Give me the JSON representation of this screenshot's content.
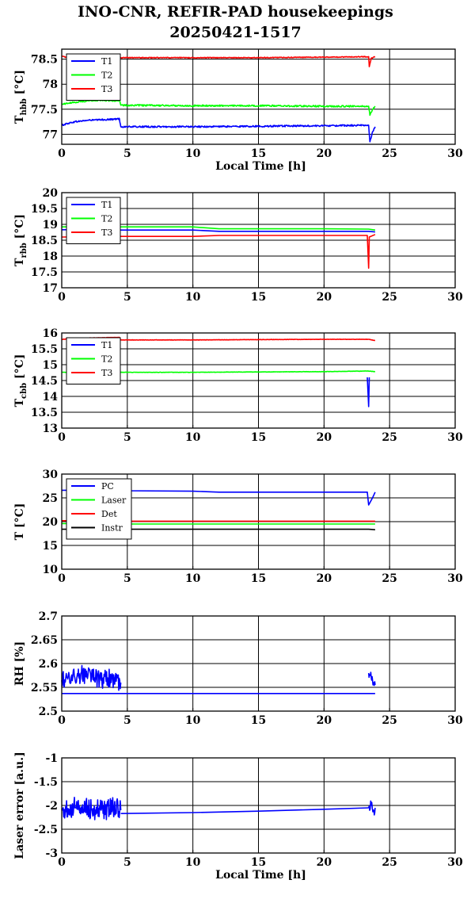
{
  "figure": {
    "title_line1": "INO-CNR, REFIR-PAD housekeepings",
    "title_line2": "20250421-1517"
  },
  "chart_data": [
    {
      "type": "line",
      "ylabel": "T",
      "ylabel_sub": "hbb",
      "ylabel_unit": " [°C]",
      "xlabel": "Local Time [h]",
      "xlim": [
        0,
        30
      ],
      "ylim": [
        76.8,
        78.7
      ],
      "xticks": [
        0,
        5,
        10,
        15,
        20,
        25,
        30
      ],
      "yticks": [
        77,
        77.5,
        78,
        78.5
      ],
      "ytick_labels": [
        "77",
        "77.5",
        "78",
        "78.5"
      ],
      "gridlines": [
        77,
        77.5,
        78,
        78.5
      ],
      "grid": true,
      "legend": "top-left",
      "series": [
        {
          "name": "T1",
          "color": "#0000ff",
          "noise": 0.03,
          "x": [
            0,
            0.5,
            1,
            2,
            3,
            4,
            4.4,
            4.5,
            10,
            15,
            20,
            23.4,
            23.5,
            23.7,
            23.9
          ],
          "y": [
            77.18,
            77.22,
            77.25,
            77.28,
            77.29,
            77.3,
            77.31,
            77.15,
            77.15,
            77.16,
            77.17,
            77.18,
            76.85,
            77.05,
            77.15
          ]
        },
        {
          "name": "T2",
          "color": "#00ff00",
          "noise": 0.03,
          "x": [
            0,
            0.5,
            1,
            2,
            3,
            4,
            4.4,
            4.5,
            10,
            15,
            20,
            23.4,
            23.5,
            23.7,
            23.9
          ],
          "y": [
            77.6,
            77.62,
            77.64,
            77.67,
            77.68,
            77.67,
            77.68,
            77.58,
            77.57,
            77.57,
            77.56,
            77.56,
            77.38,
            77.5,
            77.56
          ]
        },
        {
          "name": "T3",
          "color": "#ff0000",
          "noise": 0.015,
          "x": [
            0,
            0.3,
            1,
            2,
            3,
            4,
            4.4,
            4.5,
            10,
            15,
            20,
            23.4,
            23.45,
            23.6,
            23.9
          ],
          "y": [
            78.56,
            78.54,
            78.53,
            78.54,
            78.53,
            78.53,
            78.54,
            78.53,
            78.53,
            78.53,
            78.54,
            78.55,
            78.35,
            78.52,
            78.55
          ]
        }
      ]
    },
    {
      "type": "line",
      "ylabel": "T",
      "ylabel_sub": "rbb",
      "ylabel_unit": " [°C]",
      "xlabel": "",
      "xlim": [
        0,
        30
      ],
      "ylim": [
        17,
        20
      ],
      "xticks": [
        0,
        5,
        10,
        15,
        20,
        25,
        30
      ],
      "yticks": [
        17,
        17.5,
        18,
        18.5,
        19,
        19.5,
        20
      ],
      "ytick_labels": [
        "17",
        "17.5",
        "18",
        "18.5",
        "19",
        "19.5",
        "20"
      ],
      "gridlines": [
        17.5,
        18,
        18.5,
        19,
        19.5
      ],
      "grid": true,
      "legend": "top-left",
      "series": [
        {
          "name": "T1",
          "color": "#0000ff",
          "noise": 0,
          "x": [
            0,
            4.4,
            4.5,
            10,
            12,
            20,
            23.4,
            23.9
          ],
          "y": [
            18.83,
            18.85,
            18.82,
            18.82,
            18.78,
            18.78,
            18.78,
            18.76
          ]
        },
        {
          "name": "T2",
          "color": "#00ff00",
          "noise": 0,
          "x": [
            0,
            4.4,
            4.5,
            10,
            12,
            20,
            23.4,
            23.9
          ],
          "y": [
            18.92,
            18.94,
            18.92,
            18.92,
            18.86,
            18.86,
            18.85,
            18.82
          ]
        },
        {
          "name": "T3",
          "color": "#ff0000",
          "noise": 0,
          "x": [
            0,
            4.4,
            4.5,
            10,
            12,
            20,
            23.3,
            23.4,
            23.45,
            23.9
          ],
          "y": [
            18.6,
            18.62,
            18.62,
            18.62,
            18.65,
            18.65,
            18.65,
            17.62,
            18.6,
            18.68
          ]
        }
      ]
    },
    {
      "type": "line",
      "ylabel": "T",
      "ylabel_sub": "cbb",
      "ylabel_unit": " [°C]",
      "xlabel": "",
      "xlim": [
        0,
        30
      ],
      "ylim": [
        13,
        16
      ],
      "xticks": [
        0,
        5,
        10,
        15,
        20,
        25,
        30
      ],
      "yticks": [
        13,
        13.5,
        14,
        14.5,
        15,
        15.5,
        16
      ],
      "ytick_labels": [
        "13",
        "13.5",
        "14",
        "14.5",
        "15",
        "15.5",
        "16"
      ],
      "gridlines": [
        13.5,
        14,
        14.5,
        15,
        15.5
      ],
      "grid": true,
      "legend": "top-left",
      "series": [
        {
          "name": "T1",
          "color": "#0000ff",
          "noise": 0,
          "x": [
            23.3,
            23.4,
            23.45
          ],
          "y": [
            14.6,
            13.68,
            14.6
          ]
        },
        {
          "name": "T2",
          "color": "#00ff00",
          "noise": 0.01,
          "x": [
            0,
            4.4,
            4.5,
            10,
            15,
            20,
            23.4,
            23.9
          ],
          "y": [
            14.76,
            14.78,
            14.76,
            14.76,
            14.77,
            14.78,
            14.8,
            14.78
          ]
        },
        {
          "name": "T3",
          "color": "#ff0000",
          "noise": 0.01,
          "x": [
            0,
            1,
            2,
            3,
            4.4,
            4.5,
            10,
            15,
            20,
            23.4,
            23.9
          ],
          "y": [
            15.8,
            15.82,
            15.84,
            15.85,
            15.86,
            15.78,
            15.78,
            15.79,
            15.8,
            15.8,
            15.76
          ]
        }
      ]
    },
    {
      "type": "line",
      "ylabel": "T [°C]",
      "ylabel_sub": "",
      "ylabel_unit": "",
      "xlabel": "",
      "xlim": [
        0,
        30
      ],
      "ylim": [
        10,
        30
      ],
      "xticks": [
        0,
        5,
        10,
        15,
        20,
        25,
        30
      ],
      "yticks": [
        10,
        15,
        20,
        25,
        30
      ],
      "ytick_labels": [
        "10",
        "15",
        "20",
        "25",
        "30"
      ],
      "gridlines": [
        15,
        20,
        25
      ],
      "grid": true,
      "legend": "top-left",
      "series": [
        {
          "name": "PC",
          "color": "#0000ff",
          "noise": 0,
          "x": [
            0,
            4.4,
            4.5,
            10,
            12,
            20,
            23.3,
            23.4,
            23.7,
            23.9
          ],
          "y": [
            26.6,
            26.6,
            26.5,
            26.4,
            26.2,
            26.2,
            26.2,
            23.5,
            25.0,
            26.2
          ]
        },
        {
          "name": "Laser",
          "color": "#00ff00",
          "noise": 0,
          "x": [
            0,
            4.4,
            4.5,
            10,
            20,
            23.4,
            23.9
          ],
          "y": [
            19.6,
            19.6,
            19.5,
            19.5,
            19.5,
            19.5,
            19.5
          ]
        },
        {
          "name": "Det",
          "color": "#ff0000",
          "noise": 0,
          "x": [
            0,
            4.4,
            4.5,
            10,
            20,
            23.4,
            23.9
          ],
          "y": [
            20.2,
            20.2,
            20.1,
            20.1,
            20.1,
            20.1,
            20.1
          ]
        },
        {
          "name": "Instr",
          "color": "#000000",
          "noise": 0,
          "x": [
            0,
            4.4,
            4.5,
            10,
            20,
            23.4,
            23.9
          ],
          "y": [
            18.4,
            18.4,
            18.4,
            18.4,
            18.4,
            18.4,
            18.3
          ]
        }
      ]
    },
    {
      "type": "line",
      "ylabel": "RH [%]",
      "ylabel_sub": "",
      "ylabel_unit": "",
      "xlabel": "",
      "xlim": [
        0,
        30
      ],
      "ylim": [
        2.5,
        2.7
      ],
      "xticks": [
        0,
        5,
        10,
        15,
        20,
        25,
        30
      ],
      "yticks": [
        2.5,
        2.55,
        2.6,
        2.65,
        2.7
      ],
      "ytick_labels": [
        "2.5",
        "2.55",
        "2.6",
        "2.65",
        "2.7"
      ],
      "gridlines": [
        2.55,
        2.6,
        2.65
      ],
      "grid": true,
      "legend": "none",
      "series": [
        {
          "name": "",
          "color": "#0000ff",
          "noise": 0.04,
          "x": [
            0,
            0.5,
            1,
            1.5,
            2,
            2.5,
            3,
            3.5,
            4,
            4.5
          ],
          "y": [
            2.565,
            2.575,
            2.57,
            2.58,
            2.575,
            2.57,
            2.565,
            2.57,
            2.565,
            2.56
          ]
        },
        {
          "name": "",
          "color": "#0000ff",
          "noise": 0,
          "x": [
            0,
            4.5,
            10,
            15,
            20,
            23.9
          ],
          "y": [
            2.537,
            2.537,
            2.537,
            2.537,
            2.537,
            2.537
          ]
        },
        {
          "name": "",
          "color": "#0000ff",
          "noise": 0.025,
          "x": [
            23.4,
            23.5,
            23.6,
            23.7,
            23.8,
            23.9
          ],
          "y": [
            2.58,
            2.575,
            2.57,
            2.565,
            2.56,
            2.555
          ]
        }
      ]
    },
    {
      "type": "line",
      "ylabel": "Laser error [a.u.]",
      "ylabel_sub": "",
      "ylabel_unit": "",
      "xlabel": "Local Time [h]",
      "xlim": [
        0,
        30
      ],
      "ylim": [
        -3,
        -1
      ],
      "xticks": [
        0,
        5,
        10,
        15,
        20,
        25,
        30
      ],
      "yticks": [
        -3,
        -2.5,
        -2,
        -1.5,
        -1
      ],
      "ytick_labels": [
        "-3",
        "-2.5",
        "-2",
        "-1.5",
        "-1"
      ],
      "gridlines": [
        -2.5,
        -2,
        -1.5
      ],
      "grid": true,
      "legend": "none",
      "series": [
        {
          "name": "",
          "color": "#0000ff",
          "noise": 0.45,
          "x": [
            0,
            1,
            2,
            3,
            4,
            4.5
          ],
          "y": [
            -2.1,
            -2.05,
            -2.05,
            -2.1,
            -2.05,
            -2.1
          ]
        },
        {
          "name": "",
          "color": "#0000ff",
          "noise": 0,
          "x": [
            4.5,
            10,
            15,
            20,
            23.4
          ],
          "y": [
            -2.17,
            -2.15,
            -2.12,
            -2.08,
            -2.05
          ]
        },
        {
          "name": "",
          "color": "#0000ff",
          "noise": 0.25,
          "x": [
            23.4,
            23.6,
            23.8,
            23.9
          ],
          "y": [
            -2.05,
            -2.0,
            -2.1,
            -2.05
          ]
        }
      ]
    }
  ]
}
